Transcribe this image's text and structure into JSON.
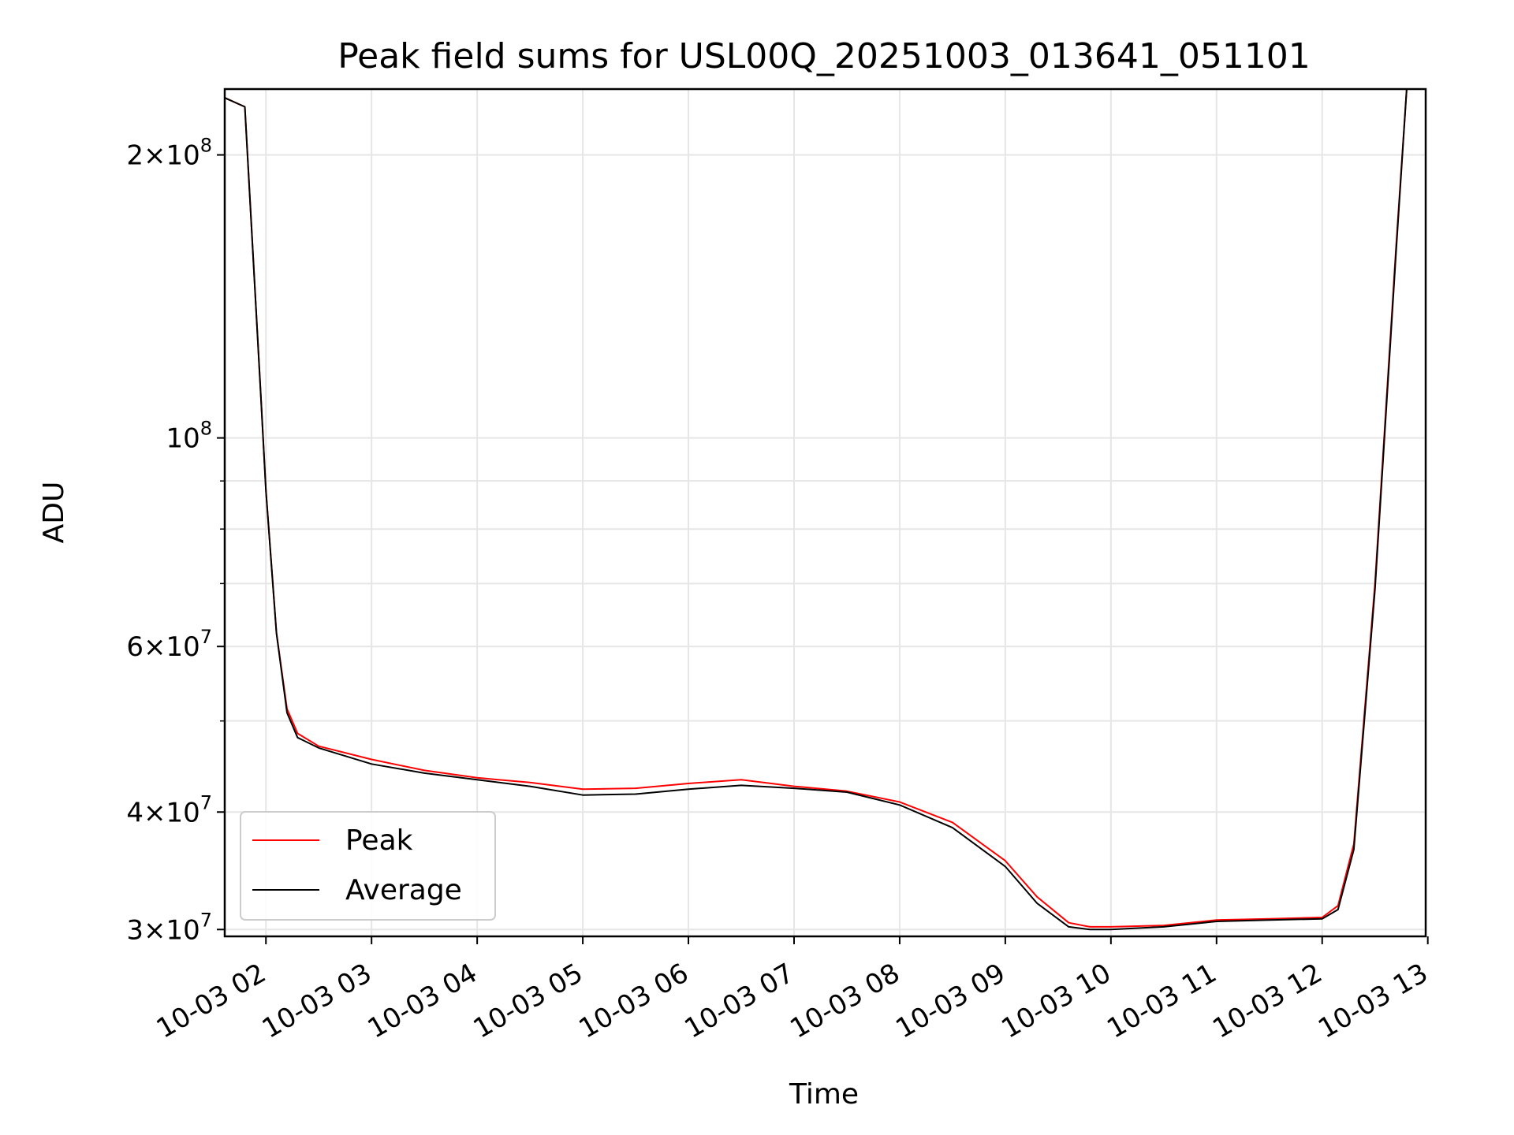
{
  "chart_data": {
    "type": "line",
    "title": "Peak field sums for USL00Q_20251003_013641_051101",
    "xlabel": "Time",
    "ylabel": "ADU",
    "yscale": "log",
    "ylim": [
      29500000,
      235000000
    ],
    "xlim_hours": [
      1.61,
      12.98
    ],
    "grid": true,
    "legend_position": "lower-left",
    "x_ticks": [
      {
        "hour": 2,
        "label": "10-03 02"
      },
      {
        "hour": 3,
        "label": "10-03 03"
      },
      {
        "hour": 4,
        "label": "10-03 04"
      },
      {
        "hour": 5,
        "label": "10-03 05"
      },
      {
        "hour": 6,
        "label": "10-03 06"
      },
      {
        "hour": 7,
        "label": "10-03 07"
      },
      {
        "hour": 8,
        "label": "10-03 08"
      },
      {
        "hour": 9,
        "label": "10-03 09"
      },
      {
        "hour": 10,
        "label": "10-03 10"
      },
      {
        "hour": 11,
        "label": "10-03 11"
      },
      {
        "hour": 12,
        "label": "10-03 12"
      },
      {
        "hour": 13,
        "label": "10-03 13"
      }
    ],
    "y_ticks_major": [
      {
        "value": 30000000,
        "mant": "3",
        "exp": "7"
      },
      {
        "value": 40000000,
        "mant": "4",
        "exp": "7"
      },
      {
        "value": 60000000,
        "mant": "6",
        "exp": "7"
      },
      {
        "value": 100000000,
        "mant": "",
        "exp": "8"
      },
      {
        "value": 200000000,
        "mant": "2",
        "exp": "8"
      }
    ],
    "y_ticks_minor": [
      50000000,
      70000000,
      80000000,
      90000000
    ],
    "series": [
      {
        "name": "Peak",
        "color": "#ff0000",
        "x": [
          1.61,
          1.8,
          1.95,
          2.0,
          2.1,
          2.2,
          2.3,
          2.5,
          3.0,
          3.5,
          4.0,
          4.5,
          5.0,
          5.5,
          6.0,
          6.5,
          7.0,
          7.5,
          8.0,
          8.5,
          9.0,
          9.3,
          9.6,
          9.8,
          10.0,
          10.5,
          11.0,
          11.5,
          12.0,
          12.15,
          12.3,
          12.5,
          12.7,
          12.8
        ],
        "y": [
          230000000,
          225000000,
          112000000,
          88000000,
          62000000,
          51500000,
          48500000,
          47000000,
          45500000,
          44300000,
          43500000,
          43000000,
          42300000,
          42400000,
          42900000,
          43300000,
          42600000,
          42100000,
          41000000,
          39000000,
          35500000,
          32500000,
          30500000,
          30200000,
          30200000,
          30300000,
          30700000,
          30800000,
          30900000,
          31800000,
          37000000,
          70000000,
          160000000,
          235000000
        ]
      },
      {
        "name": "Average",
        "color": "#000000",
        "x": [
          1.61,
          1.8,
          1.95,
          2.0,
          2.1,
          2.2,
          2.3,
          2.5,
          3.0,
          3.5,
          4.0,
          4.5,
          5.0,
          5.5,
          6.0,
          6.5,
          7.0,
          7.5,
          8.0,
          8.5,
          9.0,
          9.3,
          9.6,
          9.8,
          10.0,
          10.5,
          11.0,
          11.5,
          12.0,
          12.15,
          12.3,
          12.5,
          12.7,
          12.8
        ],
        "y": [
          230000000,
          225000000,
          112000000,
          88000000,
          62000000,
          51000000,
          48000000,
          46800000,
          45000000,
          44000000,
          43300000,
          42600000,
          41700000,
          41800000,
          42300000,
          42700000,
          42400000,
          42000000,
          40700000,
          38500000,
          35000000,
          32000000,
          30200000,
          30000000,
          30000000,
          30200000,
          30600000,
          30700000,
          30800000,
          31500000,
          36500000,
          69000000,
          158000000,
          235000000
        ]
      }
    ]
  }
}
